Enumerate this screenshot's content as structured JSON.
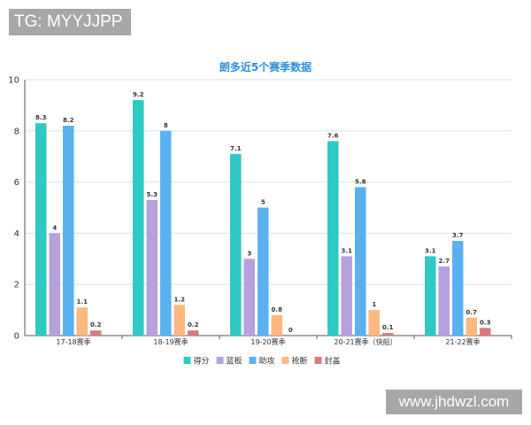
{
  "watermark_top": "TG: MYYJJPP",
  "watermark_bottom": "www.jhdwzl.com",
  "chart_data": {
    "type": "bar",
    "title": "朗多近5个赛季数据",
    "categories": [
      "17-18赛季",
      "18-19赛季",
      "19-20赛季",
      "20-21赛季（快船）",
      "21-22赛季"
    ],
    "ylim": [
      0,
      10
    ],
    "yticks": [
      0,
      2,
      4,
      6,
      8,
      10
    ],
    "grid": true,
    "legend_position": "bottom",
    "series": [
      {
        "name": "得分",
        "color": "#2ec9c4",
        "values": [
          8.3,
          9.2,
          7.1,
          7.6,
          3.1
        ]
      },
      {
        "name": "篮板",
        "color": "#b6a1de",
        "values": [
          4,
          5.3,
          3,
          3.1,
          2.7
        ]
      },
      {
        "name": "助攻",
        "color": "#5ab1ef",
        "values": [
          8.2,
          8,
          5,
          5.8,
          3.7
        ]
      },
      {
        "name": "抢断",
        "color": "#ffb980",
        "values": [
          1.1,
          1.2,
          0.8,
          1,
          0.7
        ]
      },
      {
        "name": "封盖",
        "color": "#d87a80",
        "values": [
          0.2,
          0.2,
          0,
          0.1,
          0.3
        ]
      }
    ]
  }
}
